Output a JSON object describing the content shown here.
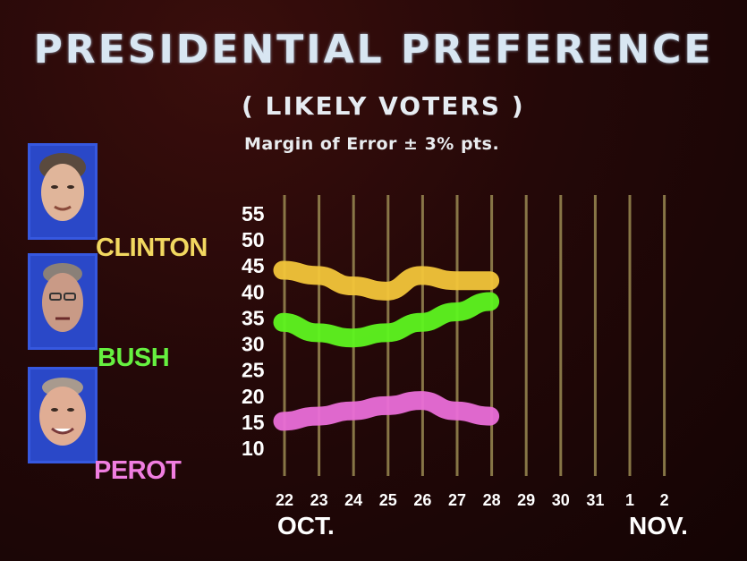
{
  "chart_data": {
    "type": "line",
    "title": "PRESIDENTIAL PREFERENCE",
    "subtitle": "( LIKELY VOTERS )",
    "note": "Margin of Error ± 3% pts.",
    "x": [
      "22",
      "23",
      "24",
      "25",
      "26",
      "27",
      "28",
      "29",
      "30",
      "31",
      "1",
      "2"
    ],
    "x_month_labels": {
      "start": "OCT.",
      "end": "NOV."
    },
    "yticks": [
      55,
      50,
      45,
      40,
      35,
      30,
      25,
      20,
      15,
      10
    ],
    "ylim": [
      10,
      55
    ],
    "grid": "vertical",
    "series": [
      {
        "name": "CLINTON",
        "color": "#f2c53a",
        "values": [
          44,
          43,
          41,
          40,
          43,
          42,
          42,
          null,
          null,
          null,
          null,
          null
        ]
      },
      {
        "name": "BUSH",
        "color": "#5ef520",
        "values": [
          34,
          32,
          31,
          32,
          34,
          36,
          38,
          null,
          null,
          null,
          null,
          null
        ]
      },
      {
        "name": "PEROT",
        "color": "#ea6ed8",
        "values": [
          15,
          16,
          17,
          18,
          19,
          17,
          16,
          null,
          null,
          null,
          null,
          null
        ]
      }
    ]
  }
}
